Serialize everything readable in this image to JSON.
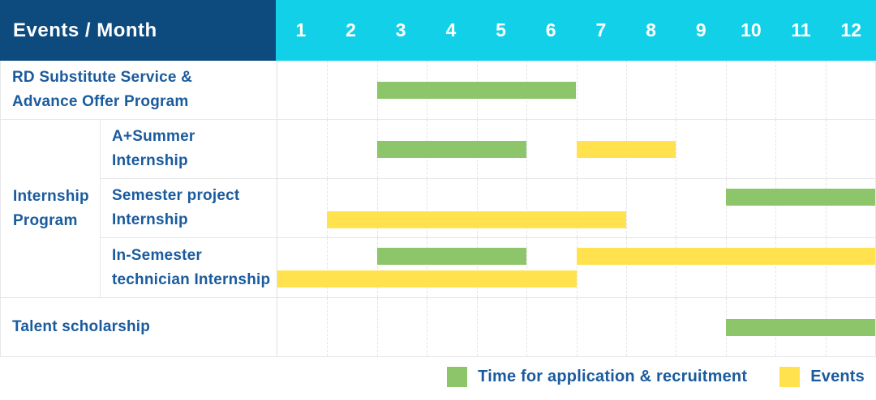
{
  "header": {
    "title": "Events / Month",
    "months": [
      "1",
      "2",
      "3",
      "4",
      "5",
      "6",
      "7",
      "8",
      "9",
      "10",
      "11",
      "12"
    ]
  },
  "colors": {
    "navy": "#0d4a7e",
    "cyan": "#12d0e8",
    "green": "#8cc56a",
    "yellow": "#ffe24d",
    "label_blue": "#1a5b9e",
    "grid": "#e7e7e7"
  },
  "group": {
    "label": "Internship\nProgram"
  },
  "legend": {
    "application": "Time for application & recruitment",
    "event": "Events"
  },
  "chart_data": {
    "type": "bar",
    "subtype": "gantt",
    "title": "Events / Month",
    "x_categories": [
      "1",
      "2",
      "3",
      "4",
      "5",
      "6",
      "7",
      "8",
      "9",
      "10",
      "11",
      "12"
    ],
    "x_range": [
      1,
      12
    ],
    "grid": true,
    "legend_position": "bottom-right",
    "kinds": {
      "application": "Time for application & recruitment (green)",
      "event": "Events (yellow)"
    },
    "rows": [
      {
        "group": null,
        "label": "RD Substitute Service &\nAdvance Offer Program",
        "segments": [
          {
            "kind": "application",
            "start": 3,
            "end": 6,
            "line": "center"
          }
        ]
      },
      {
        "group": "Internship Program",
        "label": "A+Summer\nInternship",
        "segments": [
          {
            "kind": "application",
            "start": 3,
            "end": 5,
            "line": "center"
          },
          {
            "kind": "event",
            "start": 7,
            "end": 8,
            "line": "center"
          }
        ]
      },
      {
        "group": "Internship Program",
        "label": "Semester project\nInternship",
        "segments": [
          {
            "kind": "application",
            "start": 10,
            "end": 12,
            "line": "top"
          },
          {
            "kind": "event",
            "start": 2,
            "end": 7,
            "line": "bottom"
          }
        ]
      },
      {
        "group": "Internship Program",
        "label": "In-Semester\ntechnician Internship",
        "segments": [
          {
            "kind": "application",
            "start": 3,
            "end": 5,
            "line": "top"
          },
          {
            "kind": "event",
            "start": 7,
            "end": 12,
            "line": "top"
          },
          {
            "kind": "event",
            "start": 1,
            "end": 6,
            "line": "bottom"
          }
        ]
      },
      {
        "group": null,
        "label": "Talent scholarship",
        "segments": [
          {
            "kind": "application",
            "start": 10,
            "end": 12,
            "line": "center"
          }
        ]
      }
    ]
  }
}
